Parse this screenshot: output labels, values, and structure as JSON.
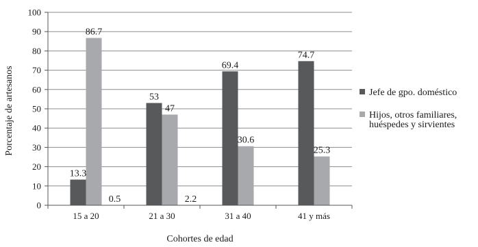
{
  "chart_data": {
    "type": "bar",
    "xlabel": "Cohortes de edad",
    "ylabel": "Porcentaje de artesanos",
    "ylim": [
      0,
      100
    ],
    "yticks": [
      "0",
      "10",
      "20",
      "30",
      "40",
      "50",
      "60",
      "70",
      "80",
      "90",
      "100"
    ],
    "categories": [
      "15 a 20",
      "21 a 30",
      "31 a 40",
      "41 y más"
    ],
    "grid": "horizontal",
    "legend_position": "right",
    "series": [
      {
        "name": "Jefe de gpo. doméstico",
        "color": "#58595b",
        "values": [
          13.3,
          53,
          69.4,
          74.7
        ],
        "labels": [
          "13.3",
          "53",
          "69.4",
          "74.7"
        ]
      },
      {
        "name_lines": [
          "Hijos, otros familiares,",
          "huéspedes y sirvientes"
        ],
        "color": "#a7a9ac",
        "values": [
          86.7,
          47,
          30.6,
          25.3
        ],
        "labels": [
          "86.7",
          "47",
          "30.6",
          "25.3"
        ]
      }
    ],
    "extra_labels": [
      "0.5",
      "2.2"
    ]
  }
}
